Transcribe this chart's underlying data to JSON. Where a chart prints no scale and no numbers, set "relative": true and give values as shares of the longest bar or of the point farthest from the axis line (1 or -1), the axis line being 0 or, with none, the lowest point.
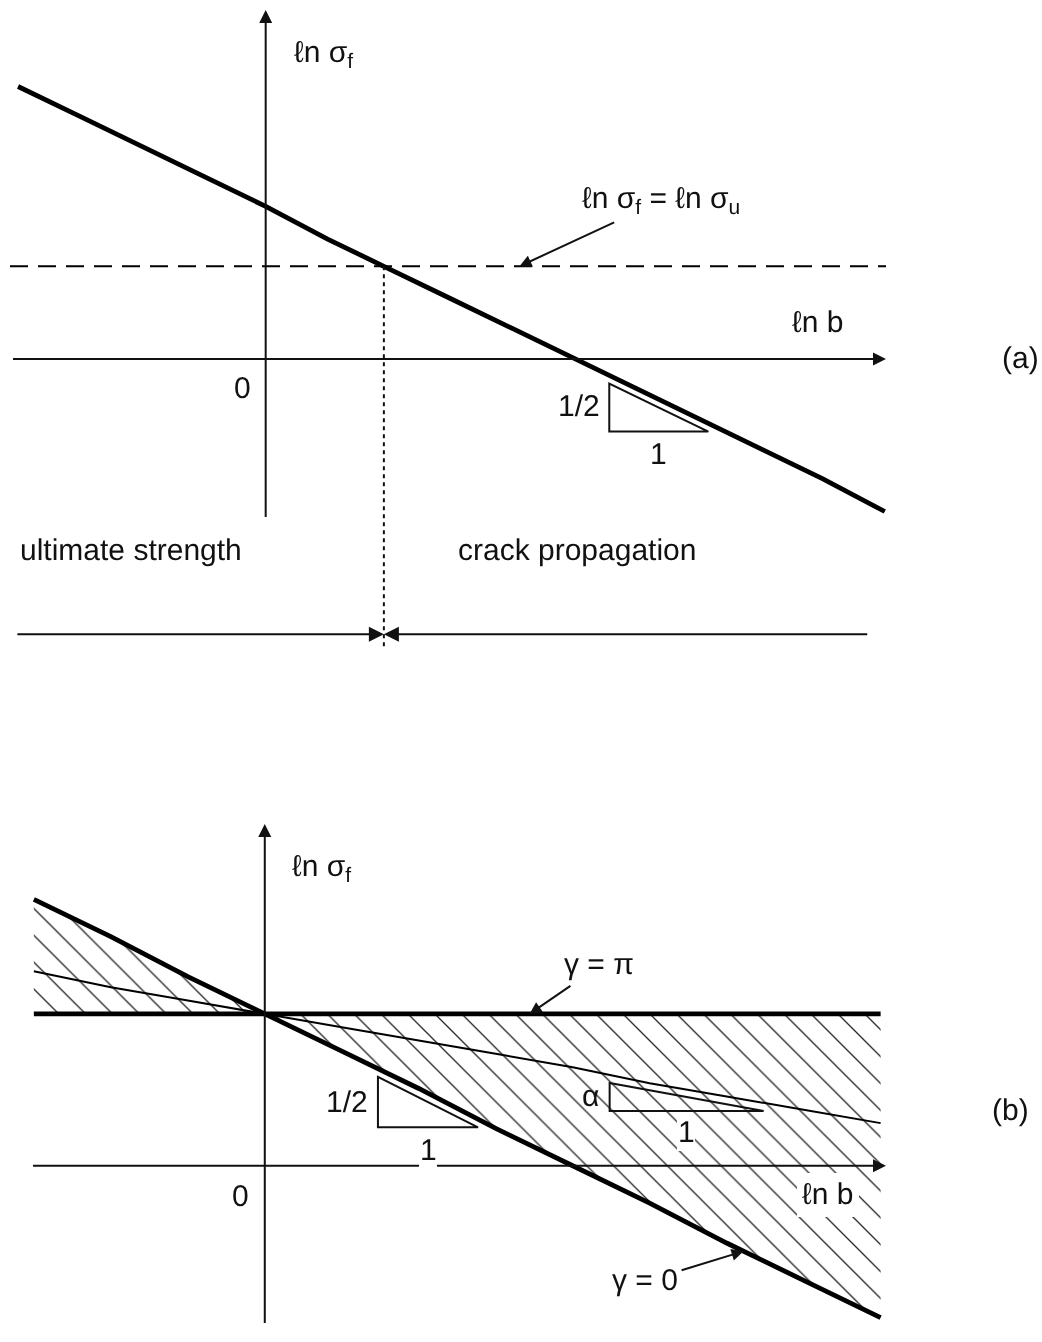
{
  "chart_data": [
    {
      "type": "line",
      "relative": true,
      "ylabel": "ℓn σ$_{f}$",
      "xlabel": "ℓn b",
      "categories": [
        null,
        null,
        null,
        null,
        null,
        null,
        null,
        null,
        null,
        null,
        null,
        null,
        null,
        null,
        null
      ],
      "series": [
        {
          "color": "#000000",
          "values": [
            1,
            0.89,
            0.78,
            0.67,
            0.56,
            0.44,
            0.33,
            0.22,
            0.11,
            0,
            -0.11,
            -0.22,
            -0.33,
            -0.44,
            -0.56
          ]
        }
      ],
      "ref_lines": [
        {
          "axis": "y",
          "value": 0.34,
          "label": "ℓn σ$_{f}$ = ℓn σ$_{u}$",
          "line_style": "dashed",
          "color": "#000000"
        }
      ],
      "annotations": [
        "0",
        "(a)",
        "1/2",
        "1",
        "ultimate strength",
        "crack propagation"
      ]
    },
    {
      "type": "line",
      "relative": true,
      "ylabel": "ℓn σ$_{f}$",
      "xlabel": "ℓn b",
      "categories": [
        null,
        null,
        null,
        null,
        null,
        null,
        null,
        null,
        null,
        null,
        null,
        null
      ],
      "series": [
        {
          "name": "γ = π",
          "color": "#000000",
          "values": [
            0.57,
            0.57,
            0.57,
            0.57,
            0.57,
            0.57,
            0.57,
            0.57,
            0.57,
            0.57,
            0.57,
            0.57
          ]
        },
        {
          "name": "γ = 0",
          "color": "#000000",
          "values": [
            1,
            0.86,
            0.71,
            0.57,
            0.43,
            0.29,
            0.14,
            0,
            -0.14,
            -0.29,
            -0.43,
            -0.57
          ]
        },
        {
          "color": "#000000",
          "values": [
            0.73,
            0.67,
            0.62,
            0.57,
            0.52,
            0.47,
            0.42,
            0.37,
            0.31,
            0.26,
            0.21,
            0.16
          ],
          "lower": [
            0.57,
            0.57,
            0.57,
            0.57,
            0.43,
            0.29,
            0.14,
            0,
            -0.14,
            -0.29,
            -0.43,
            -0.57
          ],
          "upper": [
            1,
            0.86,
            0.71,
            0.57,
            0.57,
            0.57,
            0.57,
            0.57,
            0.57,
            0.57,
            0.57,
            0.57
          ]
        }
      ],
      "annotations": [
        "0",
        "(b)",
        "1/2",
        "1",
        "α",
        "1"
      ]
    }
  ]
}
